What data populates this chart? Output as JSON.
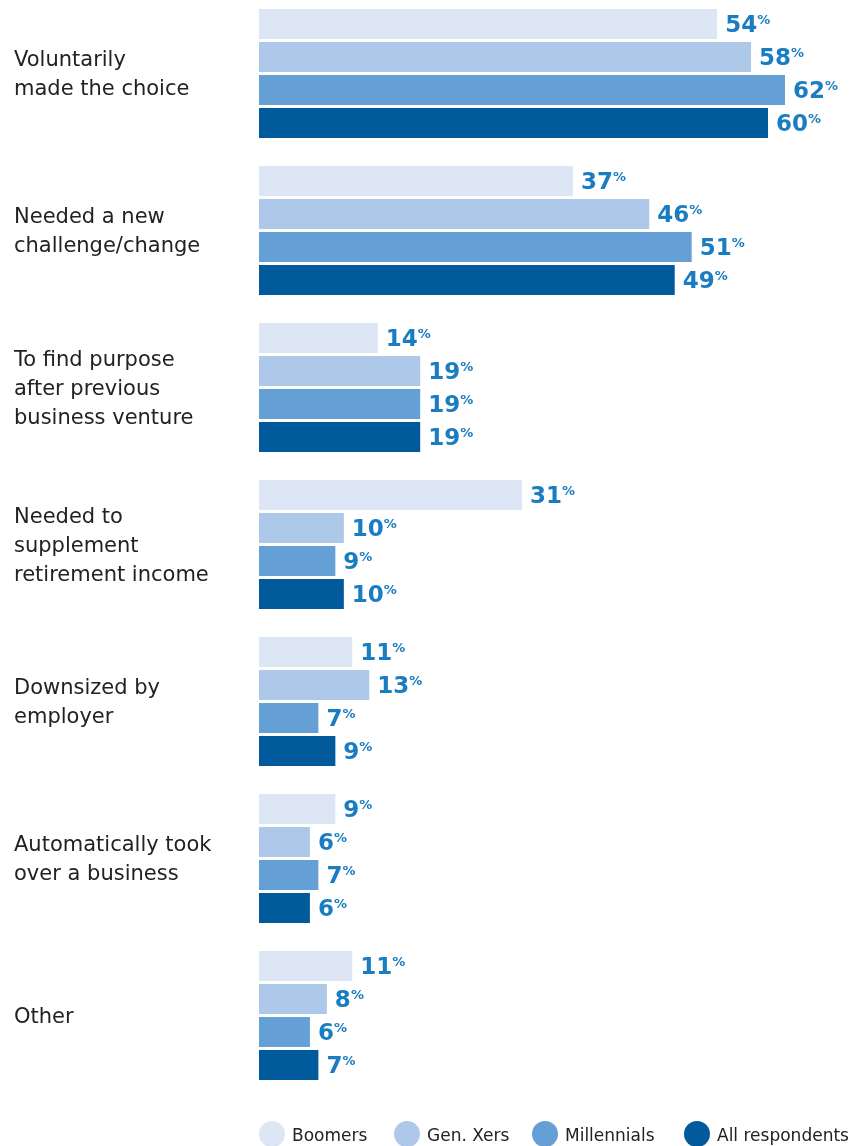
{
  "chart_data": {
    "type": "bar",
    "orientation": "horizontal",
    "legend": "bottom",
    "categories": [
      "Voluntarily\nmade the choice",
      "Needed a new\nchallenge/change",
      "To find purpose\nafter previous\nbusiness venture",
      "Needed to\nsupplement\nretirement income",
      "Downsized by\nemployer",
      "Automatically took\nover a business",
      "Other"
    ],
    "series": [
      {
        "name": "Boomers",
        "color": "#dce6f4",
        "values": [
          54,
          37,
          14,
          31,
          11,
          9,
          11
        ],
        "value_labels": [
          "54$^{%}$",
          "37$^{%}$",
          "14$^{%}$",
          "31$^{%}$",
          "11$^{%}$",
          "9$^{%}$",
          "11$^{%}$"
        ]
      },
      {
        "name": "Gen. Xers",
        "color": "#adc8e8",
        "values": [
          58,
          46,
          19,
          10,
          13,
          6,
          8
        ],
        "value_labels": [
          "58$^{%}$",
          "46$^{%}$",
          "19$^{%}$",
          "10$^{%}$",
          "13$^{%}$",
          "6$^{%}$",
          "8$^{%}$"
        ]
      },
      {
        "name": "Millennials",
        "color": "#64a0d6",
        "values": [
          62,
          51,
          19,
          9,
          7,
          7,
          6
        ],
        "value_labels": [
          "62$^{%}$",
          "51$^{%}$",
          "19$^{%}$",
          "9$^{%}$",
          "7$^{%}$",
          "7$^{%}$",
          "6$^{%}$"
        ]
      },
      {
        "name": "All respondents",
        "color": "#005a9c",
        "values": [
          60,
          49,
          19,
          10,
          9,
          6,
          7
        ],
        "value_labels": [
          "60$^{%}$",
          "49$^{%}$",
          "19$^{%}$",
          "10$^{%}$",
          "9$^{%}$",
          "6$^{%}$",
          "7$^{%}$"
        ]
      }
    ]
  }
}
